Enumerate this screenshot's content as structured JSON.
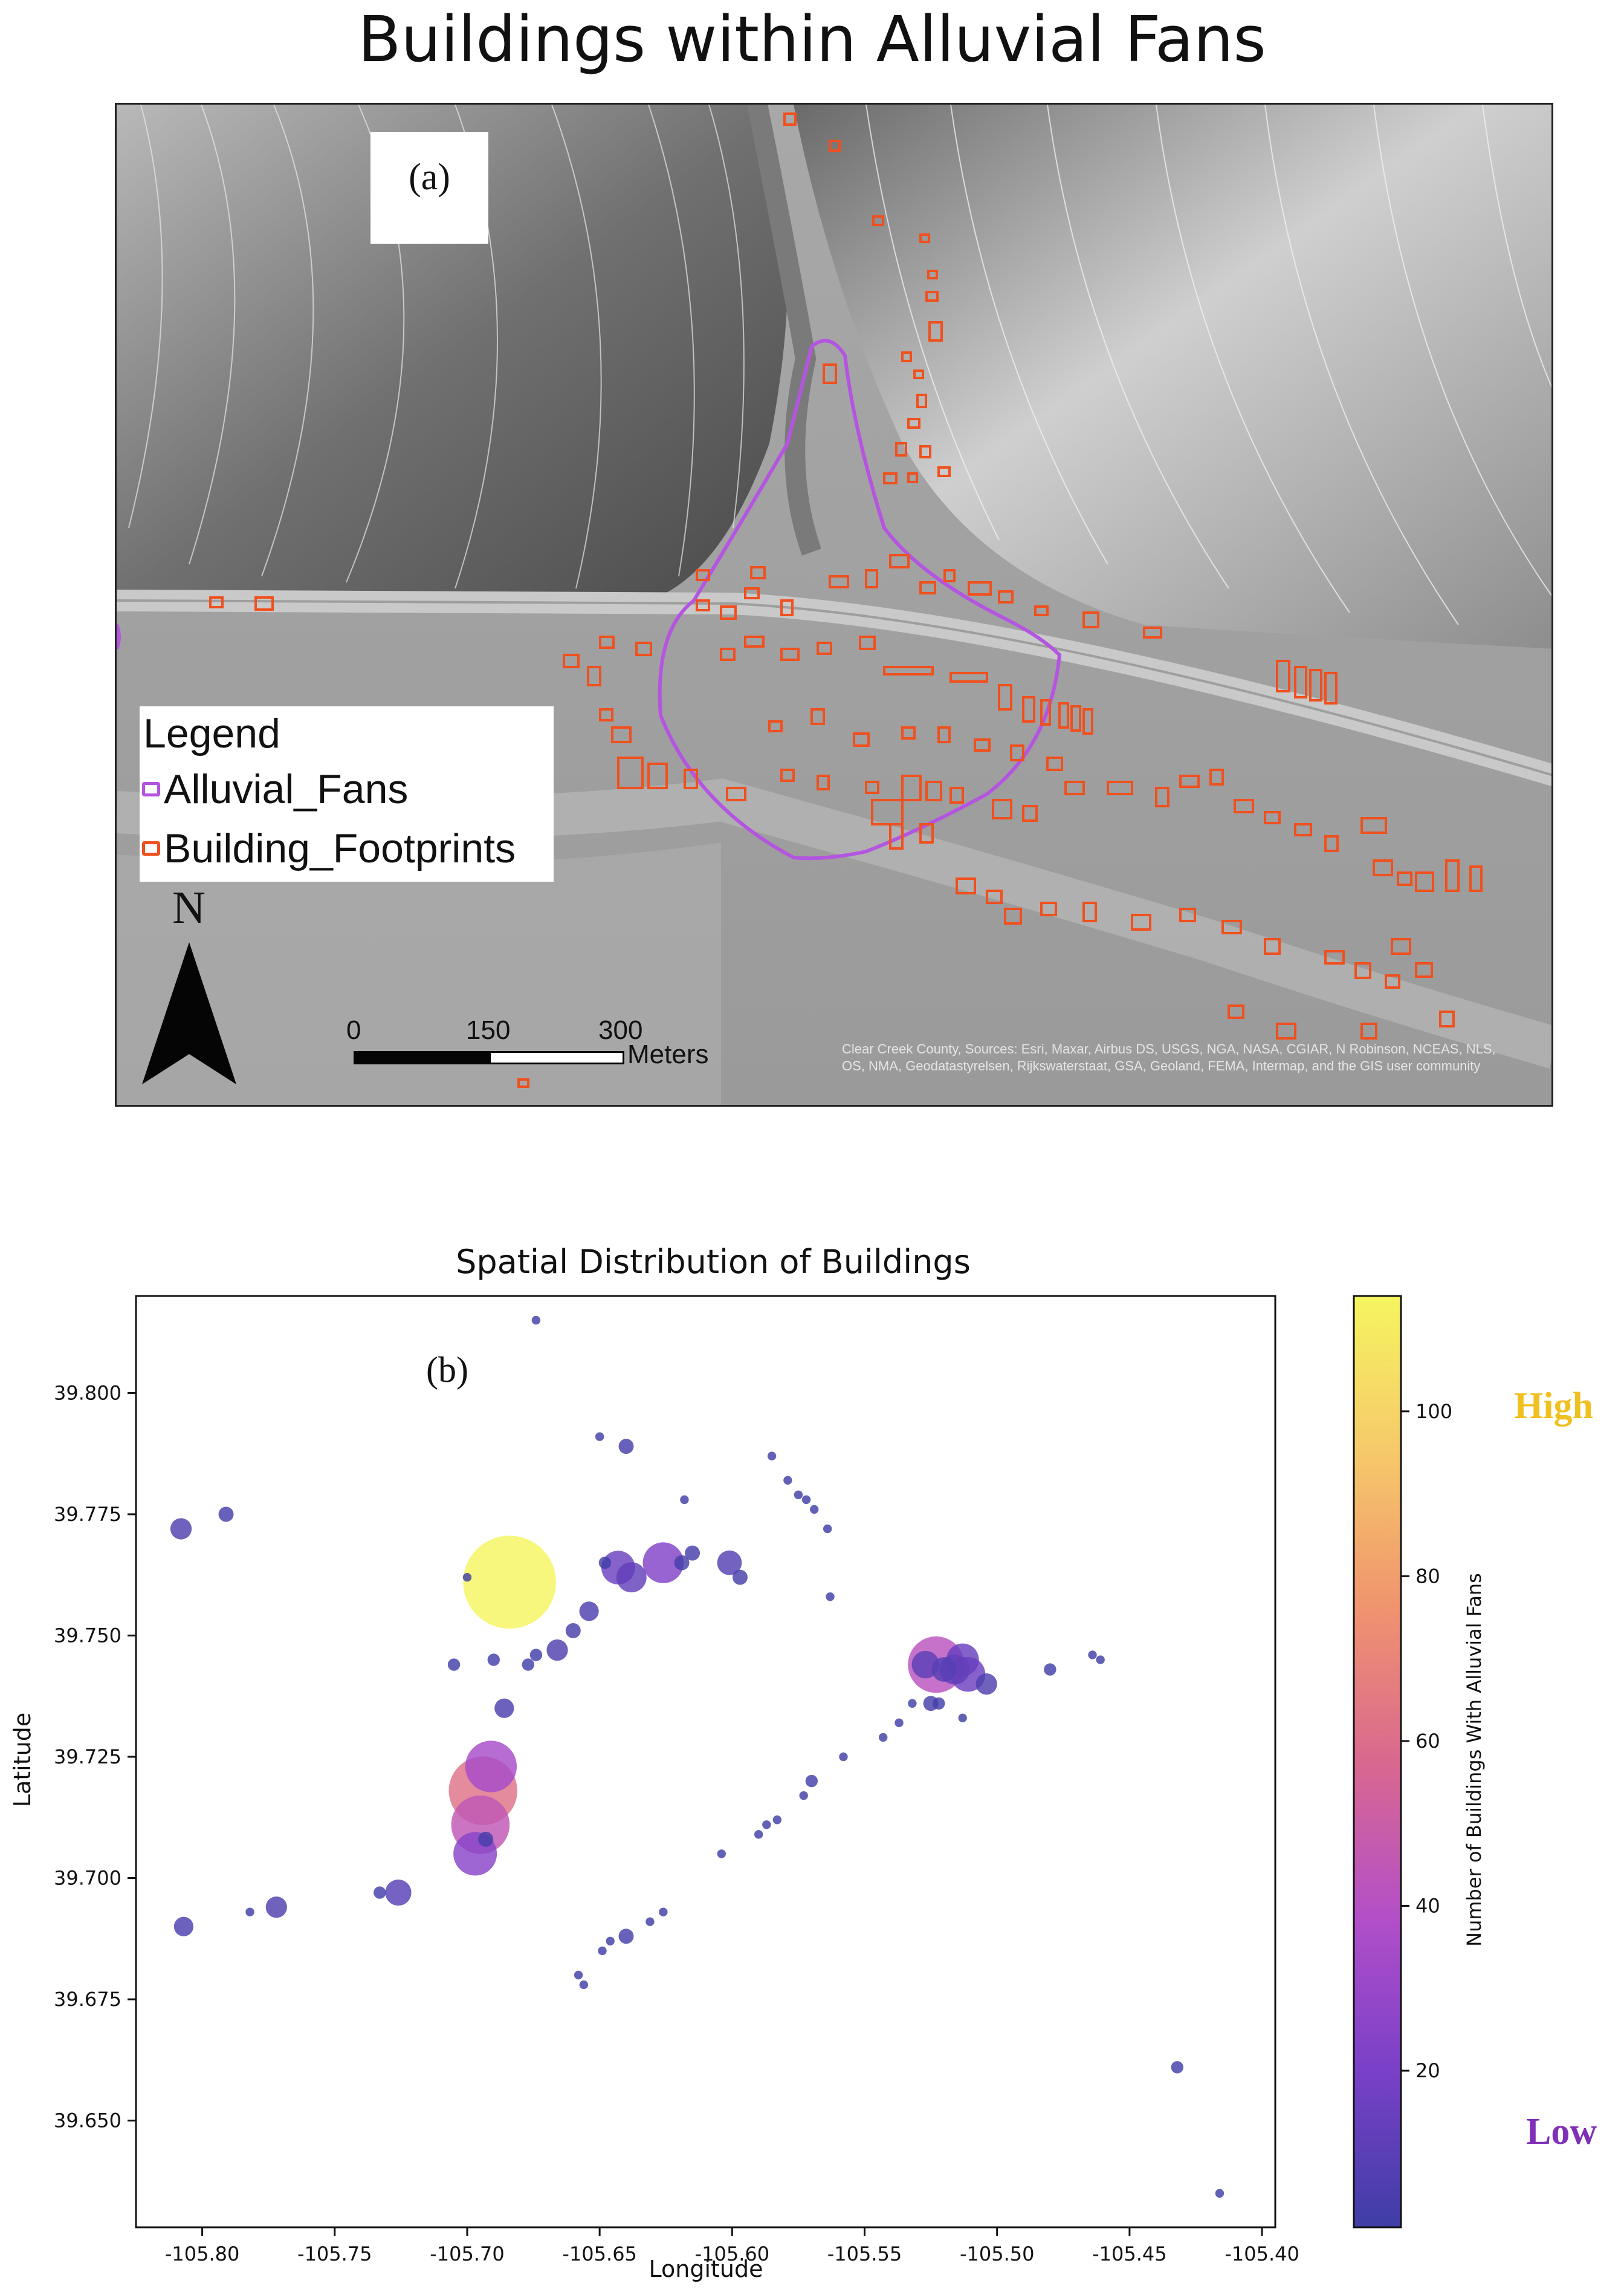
{
  "figure_title": "Buildings within Alluvial Fans",
  "map": {
    "panel_label": "(a)",
    "legend": {
      "title": "Legend",
      "items": [
        {
          "label": "Alluvial_Fans",
          "color": "#b455e0"
        },
        {
          "label": "Building_Footprints",
          "color": "#f0501e"
        }
      ]
    },
    "north_label": "N",
    "scale": {
      "ticks": [
        "0",
        "150",
        "300"
      ],
      "unit": "Meters"
    },
    "attribution": "Clear Creek County, Sources: Esri, Maxar, Airbus DS, USGS, NGA, NASA, CGIAR, N Robinson, NCEAS, NLS, OS, NMA, Geodatastyrelsen, Rijkswaterstaat, GSA, Geoland, FEMA, Intermap, and the GIS user community",
    "fan_color": "#b455e0",
    "building_color": "#f0501e"
  },
  "chart_data": {
    "type": "scatter",
    "title": "Spatial Distribution of Buildings",
    "panel_label": "(b)",
    "xlabel": "Longitude",
    "ylabel": "Latitude",
    "xlim": [
      -105.825,
      -105.395
    ],
    "ylim": [
      39.628,
      39.82
    ],
    "xticks": [
      "-105.80",
      "-105.75",
      "-105.70",
      "-105.65",
      "-105.60",
      "-105.55",
      "-105.50",
      "-105.45",
      "-105.40"
    ],
    "xtick_values": [
      -105.8,
      -105.75,
      -105.7,
      -105.65,
      -105.6,
      -105.55,
      -105.5,
      -105.45,
      -105.4
    ],
    "yticks": [
      "39.650",
      "39.675",
      "39.700",
      "39.725",
      "39.750",
      "39.775",
      "39.800"
    ],
    "ytick_values": [
      39.65,
      39.675,
      39.7,
      39.725,
      39.75,
      39.775,
      39.8
    ],
    "colorbar": {
      "label": "Number of Buildings With Alluvial Fans",
      "ticks": [
        "20",
        "40",
        "60",
        "80",
        "100"
      ],
      "tick_values": [
        20,
        40,
        60,
        80,
        100
      ],
      "min": 1,
      "max": 114,
      "colors": [
        "#3f3ea6",
        "#7a40c8",
        "#b24fc9",
        "#d9688f",
        "#f0956e",
        "#f6c86a",
        "#f5f560"
      ]
    },
    "annotations": {
      "high": "High",
      "low": "Low",
      "high_color": "#f0c020",
      "low_color": "#8030b8"
    },
    "points": [
      {
        "lon": -105.808,
        "lat": 39.772,
        "count": 6
      },
      {
        "lon": -105.791,
        "lat": 39.775,
        "count": 3
      },
      {
        "lon": -105.807,
        "lat": 39.69,
        "count": 5
      },
      {
        "lon": -105.782,
        "lat": 39.693,
        "count": 1
      },
      {
        "lon": -105.772,
        "lat": 39.694,
        "count": 6
      },
      {
        "lon": -105.733,
        "lat": 39.697,
        "count": 2
      },
      {
        "lon": -105.726,
        "lat": 39.697,
        "count": 9
      },
      {
        "lon": -105.684,
        "lat": 39.761,
        "count": 114
      },
      {
        "lon": -105.7,
        "lat": 39.762,
        "count": 1
      },
      {
        "lon": -105.674,
        "lat": 39.815,
        "count": 1
      },
      {
        "lon": -105.705,
        "lat": 39.744,
        "count": 2
      },
      {
        "lon": -105.69,
        "lat": 39.745,
        "count": 2
      },
      {
        "lon": -105.686,
        "lat": 39.735,
        "count": 5
      },
      {
        "lon": -105.691,
        "lat": 39.723,
        "count": 35
      },
      {
        "lon": -105.694,
        "lat": 39.718,
        "count": 62
      },
      {
        "lon": -105.695,
        "lat": 39.711,
        "count": 45
      },
      {
        "lon": -105.693,
        "lat": 39.708,
        "count": 3
      },
      {
        "lon": -105.697,
        "lat": 39.705,
        "count": 25
      },
      {
        "lon": -105.677,
        "lat": 39.744,
        "count": 2
      },
      {
        "lon": -105.674,
        "lat": 39.746,
        "count": 2
      },
      {
        "lon": -105.666,
        "lat": 39.747,
        "count": 6
      },
      {
        "lon": -105.66,
        "lat": 39.751,
        "count": 3
      },
      {
        "lon": -105.654,
        "lat": 39.755,
        "count": 5
      },
      {
        "lon": -105.648,
        "lat": 39.765,
        "count": 2
      },
      {
        "lon": -105.643,
        "lat": 39.764,
        "count": 15
      },
      {
        "lon": -105.638,
        "lat": 39.762,
        "count": 12
      },
      {
        "lon": -105.65,
        "lat": 39.791,
        "count": 1
      },
      {
        "lon": -105.64,
        "lat": 39.789,
        "count": 3
      },
      {
        "lon": -105.626,
        "lat": 39.765,
        "count": 22
      },
      {
        "lon": -105.619,
        "lat": 39.765,
        "count": 3
      },
      {
        "lon": -105.615,
        "lat": 39.767,
        "count": 3
      },
      {
        "lon": -105.618,
        "lat": 39.778,
        "count": 1
      },
      {
        "lon": -105.601,
        "lat": 39.765,
        "count": 8
      },
      {
        "lon": -105.597,
        "lat": 39.762,
        "count": 3
      },
      {
        "lon": -105.585,
        "lat": 39.787,
        "count": 1
      },
      {
        "lon": -105.579,
        "lat": 39.782,
        "count": 1
      },
      {
        "lon": -105.575,
        "lat": 39.779,
        "count": 1
      },
      {
        "lon": -105.572,
        "lat": 39.778,
        "count": 1
      },
      {
        "lon": -105.569,
        "lat": 39.776,
        "count": 1
      },
      {
        "lon": -105.564,
        "lat": 39.772,
        "count": 1
      },
      {
        "lon": -105.563,
        "lat": 39.758,
        "count": 1
      },
      {
        "lon": -105.527,
        "lat": 39.744,
        "count": 10
      },
      {
        "lon": -105.523,
        "lat": 39.744,
        "count": 42
      },
      {
        "lon": -105.52,
        "lat": 39.743,
        "count": 8
      },
      {
        "lon": -105.516,
        "lat": 39.743,
        "count": 12
      },
      {
        "lon": -105.513,
        "lat": 39.745,
        "count": 14
      },
      {
        "lon": -105.511,
        "lat": 39.742,
        "count": 16
      },
      {
        "lon": -105.504,
        "lat": 39.74,
        "count": 6
      },
      {
        "lon": -105.525,
        "lat": 39.736,
        "count": 3
      },
      {
        "lon": -105.522,
        "lat": 39.736,
        "count": 2
      },
      {
        "lon": -105.513,
        "lat": 39.733,
        "count": 1
      },
      {
        "lon": -105.48,
        "lat": 39.743,
        "count": 2
      },
      {
        "lon": -105.464,
        "lat": 39.746,
        "count": 1
      },
      {
        "lon": -105.461,
        "lat": 39.745,
        "count": 1
      },
      {
        "lon": -105.532,
        "lat": 39.736,
        "count": 1
      },
      {
        "lon": -105.537,
        "lat": 39.732,
        "count": 1
      },
      {
        "lon": -105.543,
        "lat": 39.729,
        "count": 1
      },
      {
        "lon": -105.558,
        "lat": 39.725,
        "count": 1
      },
      {
        "lon": -105.57,
        "lat": 39.72,
        "count": 2
      },
      {
        "lon": -105.573,
        "lat": 39.717,
        "count": 1
      },
      {
        "lon": -105.583,
        "lat": 39.712,
        "count": 1
      },
      {
        "lon": -105.587,
        "lat": 39.711,
        "count": 1
      },
      {
        "lon": -105.59,
        "lat": 39.709,
        "count": 1
      },
      {
        "lon": -105.604,
        "lat": 39.705,
        "count": 1
      },
      {
        "lon": -105.626,
        "lat": 39.693,
        "count": 1
      },
      {
        "lon": -105.631,
        "lat": 39.691,
        "count": 1
      },
      {
        "lon": -105.64,
        "lat": 39.688,
        "count": 3
      },
      {
        "lon": -105.646,
        "lat": 39.687,
        "count": 1
      },
      {
        "lon": -105.649,
        "lat": 39.685,
        "count": 1
      },
      {
        "lon": -105.658,
        "lat": 39.68,
        "count": 1
      },
      {
        "lon": -105.656,
        "lat": 39.678,
        "count": 1
      },
      {
        "lon": -105.432,
        "lat": 39.661,
        "count": 2
      },
      {
        "lon": -105.416,
        "lat": 39.635,
        "count": 1
      }
    ]
  }
}
